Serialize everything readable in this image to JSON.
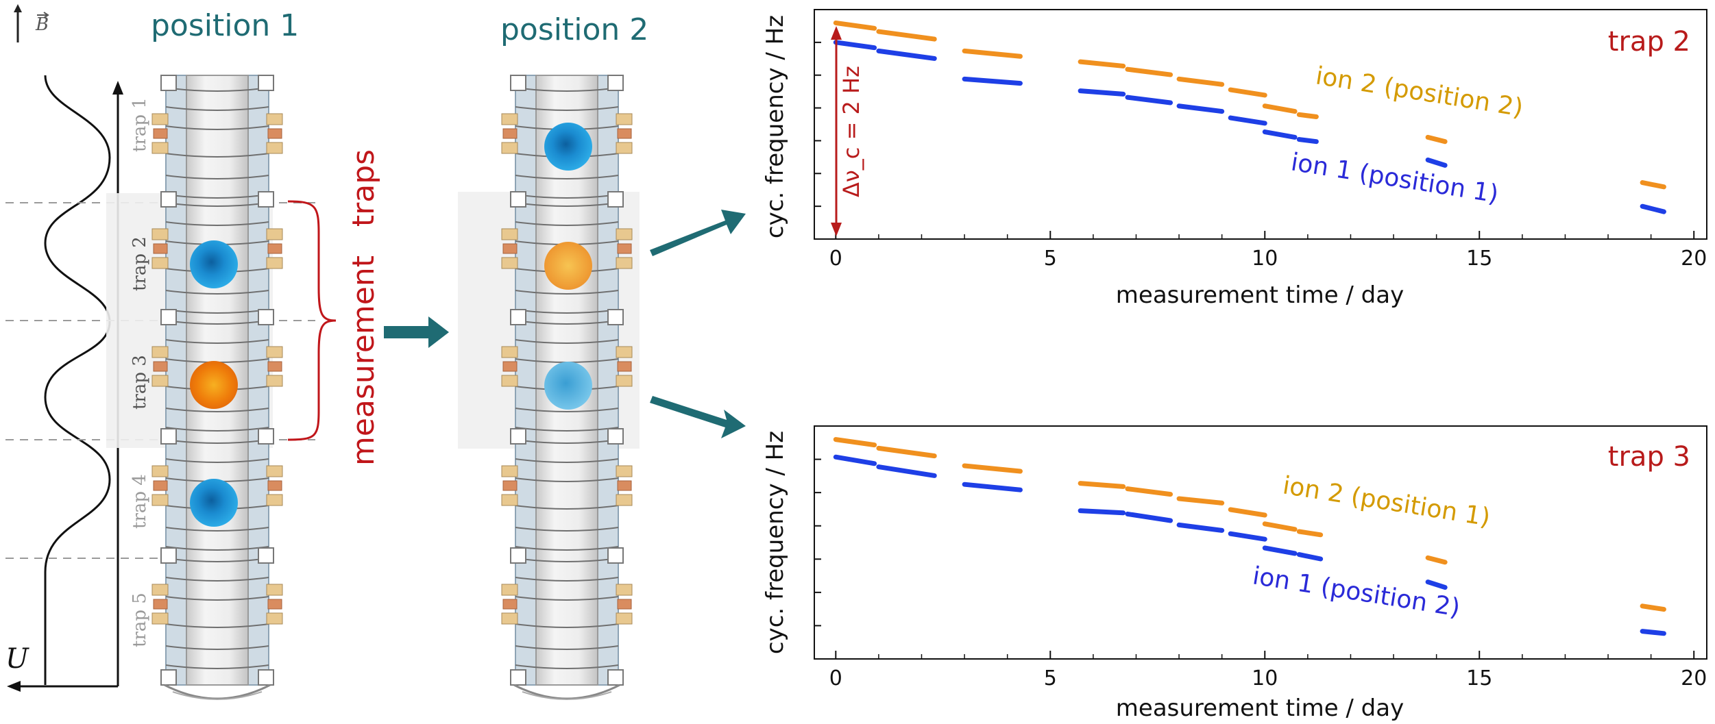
{
  "colors": {
    "teal": "#1f6b73",
    "red": "#c0161a",
    "orange": "#f0901e",
    "blue": "#1e3fe6",
    "ion_blue": "#1e9bdc",
    "ion_orange": "#ef7d0a",
    "ion2_label": "#d49a00",
    "ion1_label": "#2a2ad8"
  },
  "left": {
    "b_field_label": "B",
    "u_label": "U",
    "position1_title": "position 1",
    "position2_title": "position 2",
    "trap_labels": [
      "trap 1",
      "trap 2",
      "trap 3",
      "trap 4",
      "trap 5"
    ],
    "measurement_traps_label": "measurement   traps"
  },
  "chart_data": [
    {
      "type": "scatter",
      "title": "trap 2",
      "xlabel": "measurement time / day",
      "ylabel": "cyc. frequency / Hz",
      "xlim": [
        -0.5,
        20.3
      ],
      "x_ticks": [
        0,
        5,
        10,
        15,
        20
      ],
      "ylim": [
        0,
        10
      ],
      "scale_annotation": "Δν_c = 2 Hz",
      "series": [
        {
          "name": "ion 2 (position 2)",
          "color": "#f0901e",
          "segments": [
            [
              0.0,
              0.9,
              9.7,
              9.45
            ],
            [
              1.0,
              2.3,
              9.3,
              8.95
            ],
            [
              3.0,
              4.3,
              8.4,
              8.15
            ],
            [
              5.7,
              6.7,
              7.9,
              7.7
            ],
            [
              6.8,
              7.8,
              7.55,
              7.3
            ],
            [
              8.0,
              9.0,
              7.1,
              6.85
            ],
            [
              9.2,
              10.0,
              6.6,
              6.35
            ],
            [
              10.0,
              10.7,
              5.85,
              5.6
            ],
            [
              10.8,
              11.2,
              5.45,
              5.35
            ],
            [
              13.8,
              14.2,
              4.4,
              4.2
            ],
            [
              18.8,
              19.3,
              2.3,
              2.1
            ]
          ]
        },
        {
          "name": "ion 1 (position 1)",
          "color": "#1e3fe6",
          "segments": [
            [
              0.0,
              0.9,
              8.8,
              8.55
            ],
            [
              1.0,
              2.3,
              8.4,
              8.05
            ],
            [
              3.0,
              4.3,
              7.1,
              6.9
            ],
            [
              5.7,
              6.7,
              6.55,
              6.4
            ],
            [
              6.8,
              7.8,
              6.25,
              6.0
            ],
            [
              8.0,
              9.0,
              5.85,
              5.6
            ],
            [
              9.2,
              10.0,
              5.3,
              5.05
            ],
            [
              10.0,
              10.7,
              4.65,
              4.4
            ],
            [
              10.8,
              11.2,
              4.3,
              4.2
            ],
            [
              13.8,
              14.2,
              3.35,
              3.1
            ],
            [
              18.8,
              19.3,
              1.2,
              0.95
            ]
          ]
        }
      ]
    },
    {
      "type": "scatter",
      "title": "trap 3",
      "xlabel": "measurement time / day",
      "ylabel": "cyc. frequency / Hz",
      "xlim": [
        -0.5,
        20.3
      ],
      "x_ticks": [
        0,
        5,
        10,
        15,
        20
      ],
      "ylim": [
        0,
        10
      ],
      "series": [
        {
          "name": "ion 2 (position 1)",
          "color": "#f0901e",
          "segments": [
            [
              0.0,
              0.9,
              9.7,
              9.45
            ],
            [
              1.0,
              2.3,
              9.3,
              8.95
            ],
            [
              3.0,
              4.3,
              8.5,
              8.25
            ],
            [
              5.7,
              6.7,
              7.7,
              7.55
            ],
            [
              6.8,
              7.8,
              7.45,
              7.2
            ],
            [
              8.0,
              9.0,
              7.0,
              6.8
            ],
            [
              9.2,
              10.0,
              6.5,
              6.25
            ],
            [
              10.0,
              10.7,
              5.85,
              5.6
            ],
            [
              10.8,
              11.3,
              5.5,
              5.35
            ],
            [
              13.8,
              14.2,
              4.3,
              4.1
            ],
            [
              18.8,
              19.3,
              2.1,
              1.95
            ]
          ]
        },
        {
          "name": "ion 1 (position 2)",
          "color": "#1e3fe6",
          "segments": [
            [
              0.0,
              0.9,
              8.9,
              8.6
            ],
            [
              1.0,
              2.3,
              8.45,
              8.05
            ],
            [
              3.0,
              4.3,
              7.65,
              7.4
            ],
            [
              5.7,
              6.7,
              6.45,
              6.35
            ],
            [
              6.8,
              7.8,
              6.3,
              6.0
            ],
            [
              8.0,
              9.0,
              5.8,
              5.55
            ],
            [
              9.2,
              10.0,
              5.4,
              5.15
            ],
            [
              10.0,
              10.7,
              4.75,
              4.5
            ],
            [
              10.8,
              11.3,
              4.45,
              4.25
            ],
            [
              13.8,
              14.2,
              3.2,
              2.95
            ],
            [
              18.8,
              19.3,
              0.95,
              0.85
            ]
          ]
        }
      ]
    }
  ]
}
